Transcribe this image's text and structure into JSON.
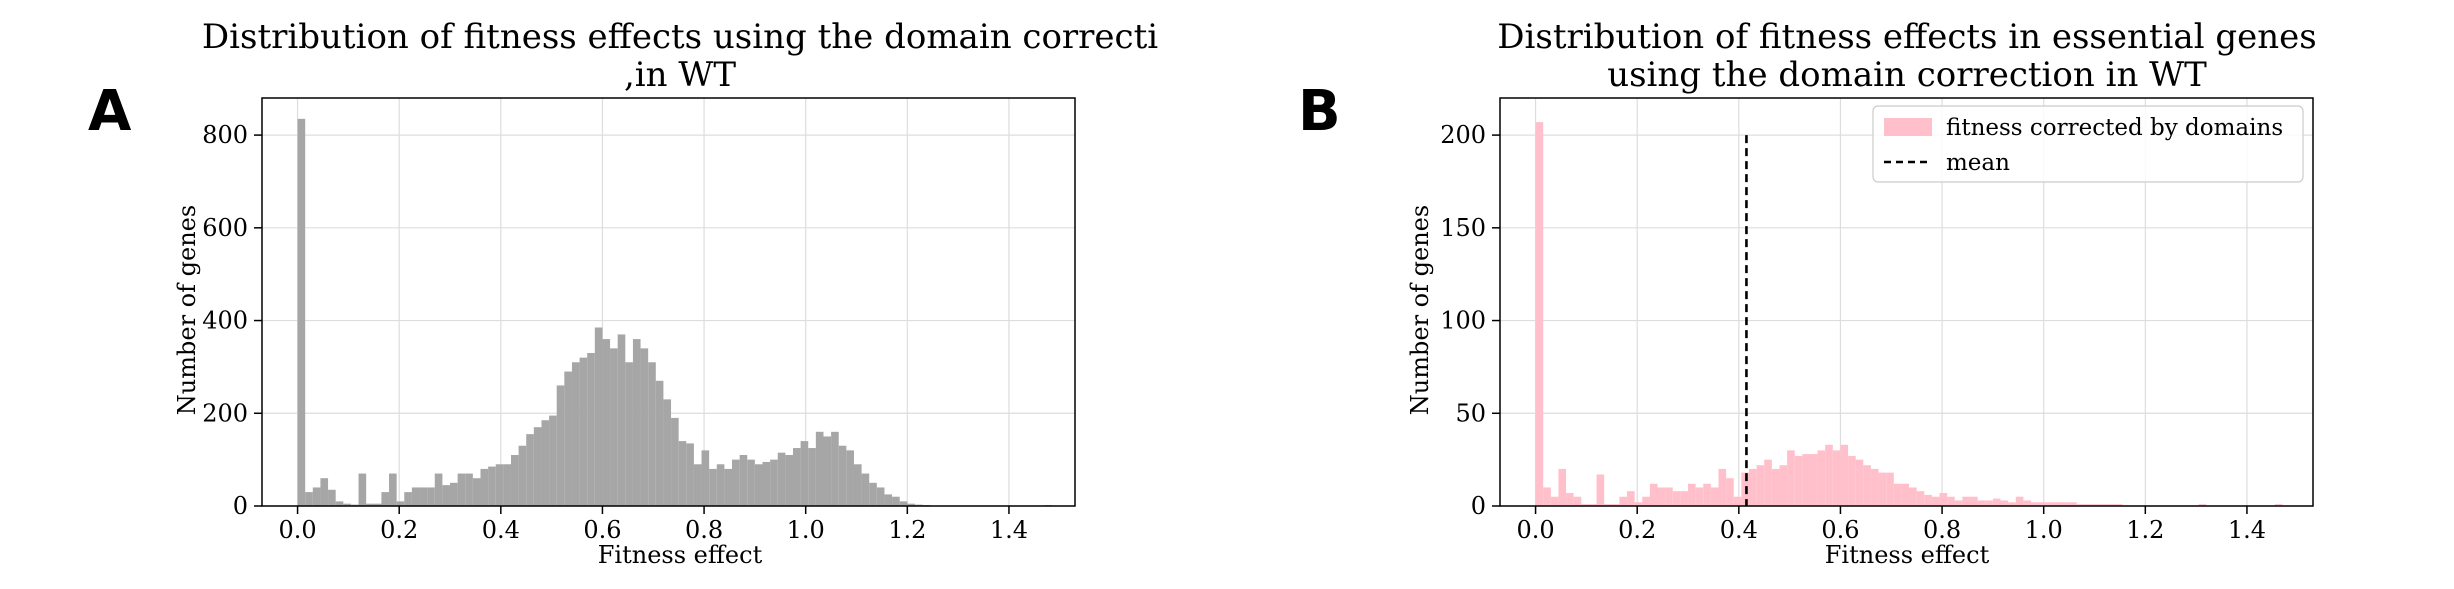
{
  "panels": {
    "a": {
      "letter": "A"
    },
    "b": {
      "letter": "B"
    }
  },
  "chart_data": [
    {
      "type": "bar",
      "subtype": "histogram",
      "title": "Distribution of fitness effects using the domain correcti",
      "title_line2": ",in WT",
      "xlabel": "Fitness effect",
      "ylabel": "Number of genes",
      "xlim": [
        -0.07,
        1.53
      ],
      "ylim": [
        0,
        880
      ],
      "xticks": [
        "0.0",
        "0.2",
        "0.4",
        "0.6",
        "0.8",
        "1.0",
        "1.2",
        "1.4"
      ],
      "yticks": [
        "0",
        "200",
        "400",
        "600",
        "800"
      ],
      "grid": true,
      "bin_start": 0.0,
      "bin_width": 0.015,
      "color": "#a6a6a6",
      "series": [
        {
          "values": [
            835,
            30,
            40,
            60,
            35,
            10,
            5,
            3,
            70,
            5,
            5,
            30,
            70,
            10,
            30,
            40,
            40,
            40,
            70,
            45,
            50,
            70,
            70,
            60,
            80,
            85,
            90,
            90,
            110,
            130,
            155,
            170,
            185,
            195,
            260,
            290,
            310,
            320,
            330,
            385,
            360,
            340,
            370,
            310,
            360,
            340,
            310,
            270,
            230,
            190,
            140,
            135,
            90,
            120,
            80,
            90,
            80,
            100,
            110,
            100,
            90,
            95,
            100,
            115,
            110,
            125,
            140,
            125,
            160,
            150,
            160,
            130,
            120,
            90,
            70,
            50,
            40,
            25,
            20,
            10,
            5,
            3,
            2,
            1,
            1,
            0,
            0,
            0,
            0,
            0,
            0,
            0,
            0,
            0,
            0,
            0,
            0,
            0,
            2
          ]
        }
      ]
    },
    {
      "type": "bar",
      "subtype": "histogram",
      "title": "Distribution of fitness effects in essential genes",
      "title_line2": "using the domain correction in WT",
      "xlabel": "Fitness effect",
      "ylabel": "Number of genes",
      "xlim": [
        -0.07,
        1.53
      ],
      "ylim": [
        0,
        220
      ],
      "xticks": [
        "0.0",
        "0.2",
        "0.4",
        "0.6",
        "0.8",
        "1.0",
        "1.2",
        "1.4"
      ],
      "yticks": [
        "0",
        "50",
        "100",
        "150",
        "200"
      ],
      "grid": true,
      "legend_position": "top-right",
      "bin_start": 0.0,
      "bin_width": 0.015,
      "color": "#ffc0cb",
      "series": [
        {
          "name": "fitness corrected by domains",
          "values": [
            207,
            10,
            5,
            20,
            7,
            5,
            1,
            1,
            17,
            1,
            1,
            5,
            8,
            2,
            5,
            12,
            10,
            10,
            8,
            8,
            12,
            10,
            12,
            10,
            20,
            15,
            5,
            18,
            20,
            22,
            25,
            20,
            22,
            30,
            27,
            28,
            28,
            30,
            33,
            30,
            33,
            27,
            25,
            22,
            20,
            18,
            18,
            12,
            12,
            10,
            8,
            6,
            5,
            7,
            5,
            3,
            5,
            5,
            3,
            3,
            4,
            3,
            2,
            5,
            3,
            2,
            2,
            2,
            2,
            2,
            2,
            1,
            1,
            1,
            1,
            1,
            1,
            0,
            0,
            0,
            0,
            0,
            0,
            0,
            0,
            0,
            0,
            1,
            0,
            0,
            0,
            0,
            0,
            0,
            0,
            0,
            0,
            1
          ]
        }
      ],
      "mean": {
        "name": "mean",
        "value": 0.415,
        "line_top": 200
      }
    }
  ]
}
